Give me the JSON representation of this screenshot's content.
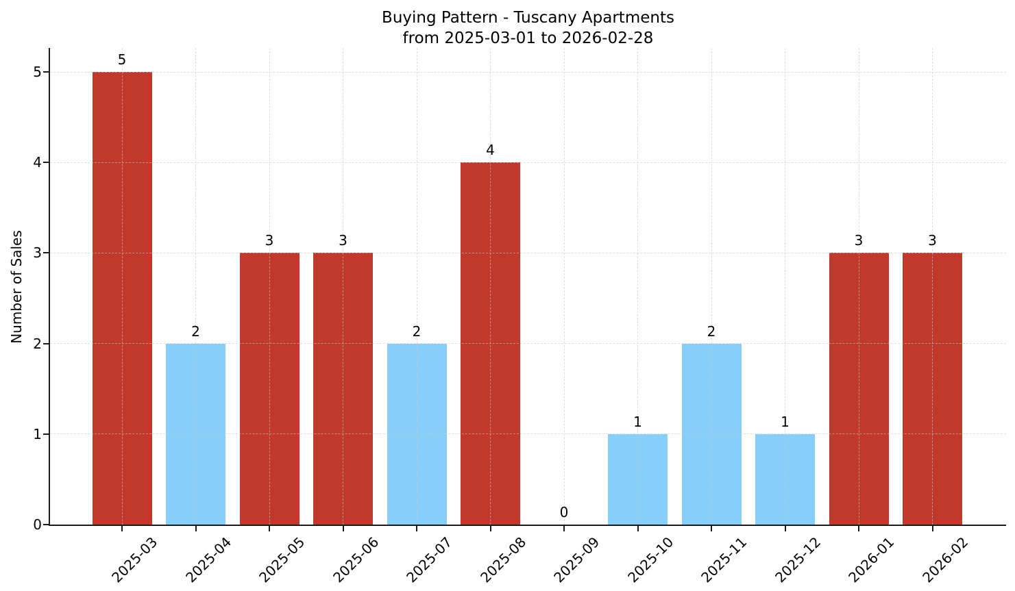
{
  "chart_data": {
    "type": "bar",
    "title": "Buying Pattern - Tuscany Apartments",
    "subtitle": "from 2025-03-01 to 2026-02-28",
    "xlabel": "",
    "ylabel": "Number of Sales",
    "categories": [
      "2025-03",
      "2025-04",
      "2025-05",
      "2025-06",
      "2025-07",
      "2025-08",
      "2025-09",
      "2025-10",
      "2025-11",
      "2025-12",
      "2026-01",
      "2026-02"
    ],
    "values": [
      5,
      2,
      3,
      3,
      2,
      4,
      0,
      1,
      2,
      1,
      3,
      3
    ],
    "value_labels": [
      "5",
      "2",
      "3",
      "3",
      "2",
      "4",
      "0",
      "1",
      "2",
      "1",
      "3",
      "3"
    ],
    "bar_colors": [
      "#c0392b",
      "#87CEFA",
      "#c0392b",
      "#c0392b",
      "#87CEFA",
      "#c0392b",
      "#87CEFA",
      "#87CEFA",
      "#87CEFA",
      "#87CEFA",
      "#c0392b",
      "#c0392b"
    ],
    "yticks": [
      0,
      1,
      2,
      3,
      4,
      5
    ],
    "ytick_labels": [
      "0",
      "1",
      "2",
      "3",
      "4",
      "5"
    ],
    "ylim": [
      0,
      5.26
    ],
    "grid": true,
    "grid_style": "dashed, light gray, drawn over bars, horizontal and vertical",
    "legend": "none",
    "colors": {
      "high_sales_bar": "#c0392b",
      "low_sales_bar": "#87CEFA",
      "grid": "#c8c8c8",
      "axis": "#1a1a1a",
      "background": "#ffffff",
      "text": "#000000"
    }
  }
}
